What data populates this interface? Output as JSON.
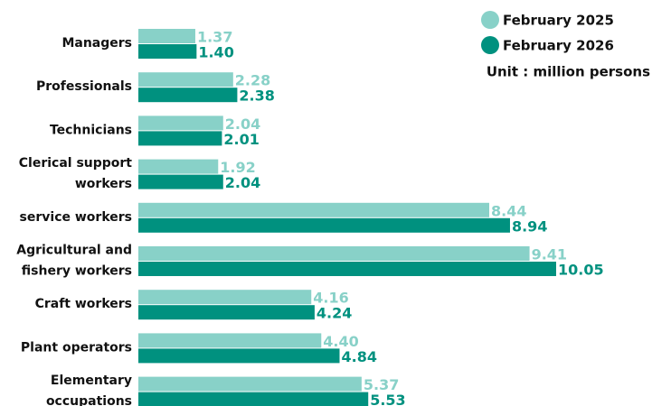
{
  "chart_data": {
    "type": "bar",
    "orientation": "horizontal",
    "categories": [
      "Managers",
      "Professionals",
      "Technicians",
      "Clerical support\nworkers",
      "service workers",
      "Agricultural and\nfishery workers",
      "Craft workers",
      "Plant operators",
      "Elementary\noccupations"
    ],
    "series": [
      {
        "name": "February 2025",
        "color": "#88d1c8",
        "values": [
          1.37,
          2.28,
          2.04,
          1.92,
          8.44,
          9.41,
          4.16,
          4.4,
          5.37
        ],
        "value_labels": [
          "1.37",
          "2.28",
          "2.04",
          "1.92",
          "8.44",
          "9.41",
          "4.16",
          "4.40",
          "5.37"
        ]
      },
      {
        "name": "February 2026",
        "color": "#00917f",
        "values": [
          1.4,
          2.38,
          2.01,
          2.04,
          8.94,
          10.05,
          4.24,
          4.84,
          5.53
        ],
        "value_labels": [
          "1.40",
          "2.38",
          "2.01",
          "2.04",
          "8.94",
          "10.05",
          "4.24",
          "4.84",
          "5.53"
        ]
      }
    ],
    "annotation": "Unit : million persons",
    "legend": "top-right"
  }
}
